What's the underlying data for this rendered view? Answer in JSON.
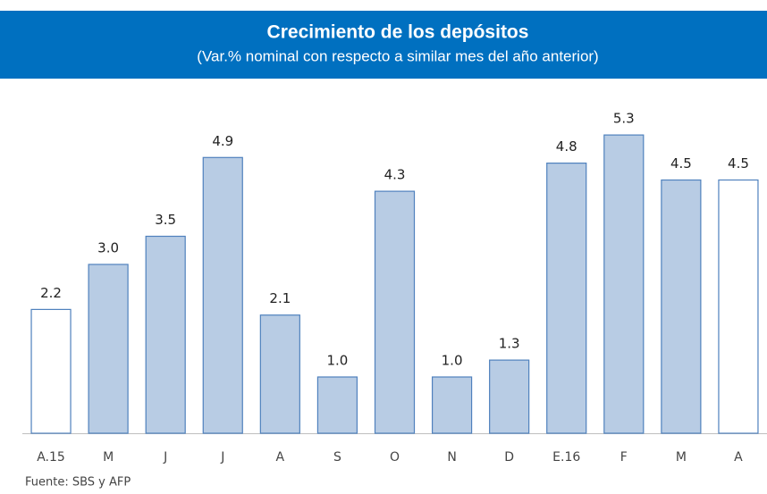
{
  "chart_data": {
    "type": "bar",
    "title": "Crecimiento de los depósitos",
    "subtitle": "(Var.% nominal con respecto a similar mes del año anterior)",
    "categories": [
      "A.15",
      "M",
      "J",
      "J",
      "A",
      "S",
      "O",
      "N",
      "D",
      "E.16",
      "F",
      "M",
      "A"
    ],
    "values": [
      2.2,
      3.0,
      3.5,
      4.9,
      2.1,
      1.0,
      4.3,
      1.0,
      1.3,
      4.8,
      5.3,
      4.5,
      4.5
    ],
    "value_labels": [
      "2.2",
      "3.0",
      "3.5",
      "4.9",
      "2.1",
      "1.0",
      "4.3",
      "1.0",
      "1.3",
      "4.8",
      "5.3",
      "4.5",
      "4.5"
    ],
    "colors": [
      "#ffffff",
      "#b8cce4",
      "#b8cce4",
      "#b8cce4",
      "#b8cce4",
      "#b8cce4",
      "#b8cce4",
      "#b8cce4",
      "#b8cce4",
      "#b8cce4",
      "#b8cce4",
      "#b8cce4",
      "#ffffff"
    ],
    "edge_color": "#4f81bd",
    "ylim": [
      0,
      6
    ],
    "source": "Fuente: SBS y AFP"
  }
}
